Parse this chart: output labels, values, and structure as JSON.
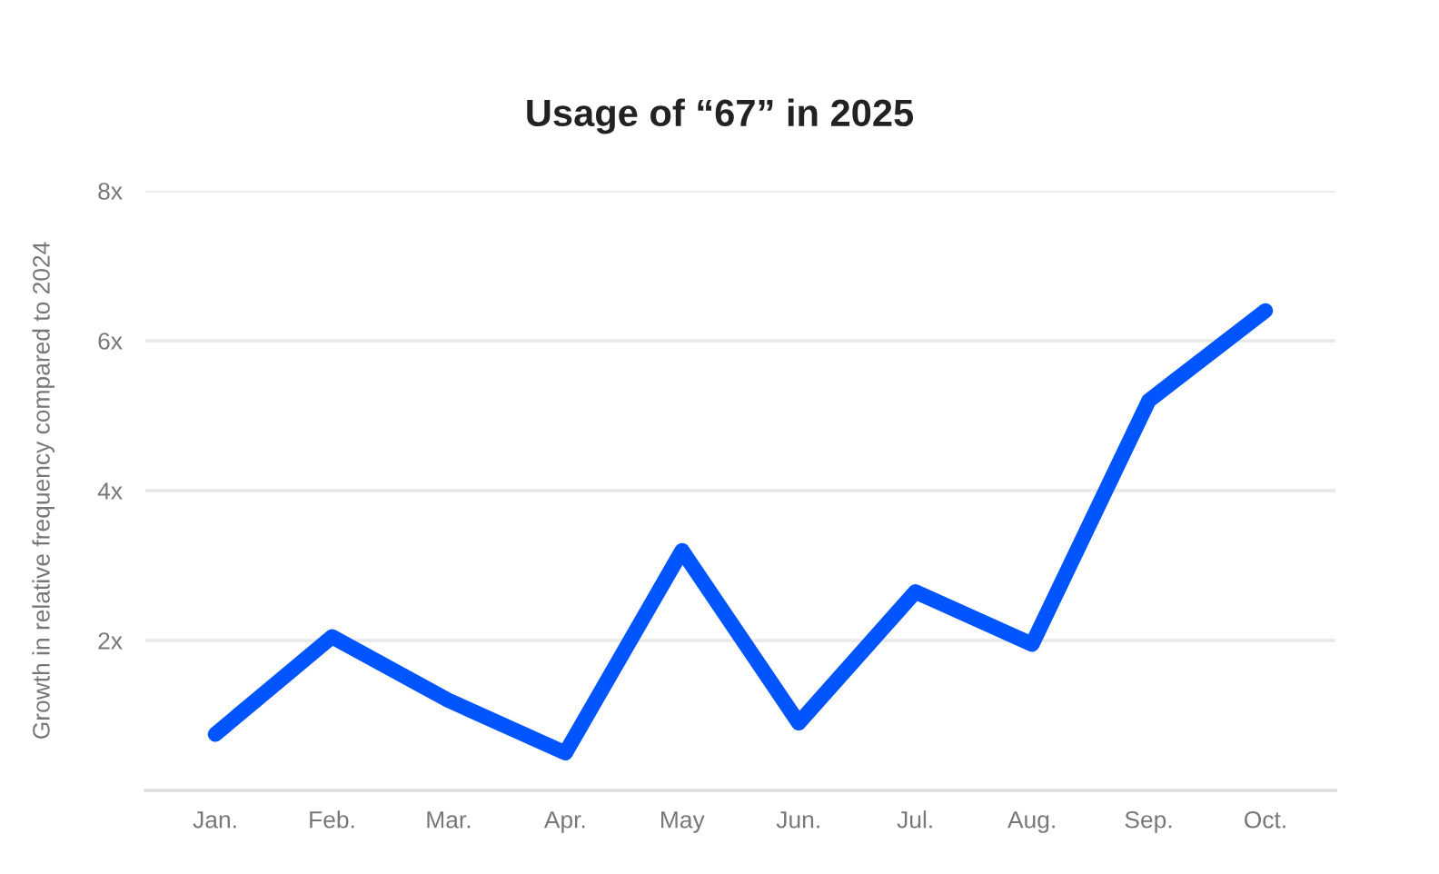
{
  "chart_data": {
    "type": "line",
    "title": "Usage of “67” in 2025",
    "ylabel": "Growth in relative frequency compared to 2024",
    "categories": [
      "Jan.",
      "Feb.",
      "Mar.",
      "Apr.",
      "May",
      "Jun.",
      "Jul.",
      "Aug.",
      "Sep.",
      "Oct."
    ],
    "series": [
      {
        "color": "#0055ff",
        "values": [
          0.75,
          2.05,
          1.2,
          0.5,
          3.2,
          0.9,
          2.65,
          1.95,
          5.2,
          6.4
        ]
      }
    ],
    "ylim": [
      0,
      8
    ],
    "yticks": [
      {
        "value": 2,
        "label": "2x"
      },
      {
        "value": 4,
        "label": "4x"
      },
      {
        "value": 6,
        "label": "6x"
      },
      {
        "value": 8,
        "label": "8x"
      }
    ],
    "grid": "y",
    "line_style": "solid"
  }
}
